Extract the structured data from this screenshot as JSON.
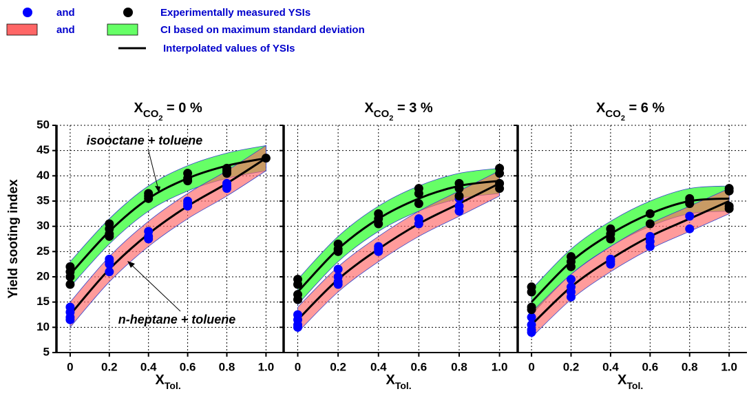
{
  "legend": [
    {
      "name": "and",
      "color": "#0000ff",
      "marker": "dot"
    },
    {
      "name": "and",
      "color": "#ff6666",
      "marker": "rect"
    },
    {
      "name": "Experimentally measured YSIs",
      "color": "#000000",
      "marker": "dot"
    },
    {
      "name": "CI based on maximum standard deviation",
      "color": "#66ff66",
      "marker": "rect"
    },
    {
      "name": "Interpolated values of YSIs",
      "color": "#000000",
      "marker": "line"
    }
  ],
  "ylabel": "Yield sooting index",
  "chart_data": [
    {
      "type": "scatter",
      "title": {
        "base": "X",
        "sub": "CO",
        "subsub": "2",
        "rest": " = 0 %"
      },
      "xlabel": {
        "base": "X",
        "sub": "Tol."
      },
      "xlim": [
        -0.07,
        1.09
      ],
      "ylim": [
        5,
        50
      ],
      "xticks": [
        0,
        0.2,
        0.4,
        0.6,
        0.8,
        {
          "value": 1,
          "label": "1.0"
        }
      ],
      "yticks": [
        5,
        10,
        15,
        20,
        25,
        30,
        35,
        40,
        45,
        50
      ],
      "show_ytick_labels": true,
      "grid": true,
      "annotations": [
        "isooctane + toluene",
        "n-heptane + toluene"
      ],
      "series": [
        {
          "type": "band",
          "color": "#66ff66",
          "x": [
            0,
            0.2,
            0.4,
            0.6,
            0.8,
            1
          ],
          "lower": [
            18,
            26.5,
            33,
            37,
            39.5,
            41
          ],
          "upper": [
            23,
            31.5,
            38,
            42,
            44.5,
            46
          ]
        },
        {
          "type": "band",
          "color": "#ff6666",
          "x": [
            0,
            0.2,
            0.4,
            0.6,
            0.8,
            1
          ],
          "lower": [
            10,
            19,
            26,
            31.5,
            36,
            41
          ],
          "upper": [
            15,
            24,
            31,
            36.5,
            41,
            46
          ]
        },
        {
          "type": "line",
          "color": "#000000",
          "x": [
            0,
            0.2,
            0.4,
            0.6,
            0.8,
            1
          ],
          "values": [
            20.5,
            29,
            35.5,
            39.5,
            42,
            43.5
          ]
        },
        {
          "type": "line",
          "color": "#000000",
          "x": [
            0,
            0.2,
            0.4,
            0.6,
            0.8,
            1
          ],
          "values": [
            12.5,
            21.5,
            28.5,
            34,
            38.5,
            43.5
          ]
        },
        {
          "type": "points",
          "color": "#0000ff",
          "x": [
            0,
            0,
            0,
            0,
            0.2,
            0.2,
            0.2,
            0.2,
            0.4,
            0.4,
            0.4,
            0.6,
            0.6,
            0.6,
            0.8,
            0.8,
            0.8
          ],
          "values": [
            14,
            13,
            12,
            11.5,
            23.5,
            23,
            22.5,
            21,
            29,
            28,
            27.5,
            35,
            34.5,
            34,
            38.5,
            38,
            37.5
          ]
        },
        {
          "type": "points",
          "color": "#000000",
          "x": [
            0,
            0,
            0,
            0,
            0.2,
            0.2,
            0.2,
            0.2,
            0.4,
            0.4,
            0.4,
            0.6,
            0.6,
            0.6,
            0.8,
            0.8,
            0.8,
            1
          ],
          "values": [
            22,
            21,
            20,
            18.5,
            30.5,
            29.5,
            28.5,
            28,
            36.5,
            36,
            35.5,
            40.5,
            39.5,
            39,
            41.5,
            41,
            40.5,
            43.5
          ]
        }
      ]
    },
    {
      "type": "scatter",
      "title": {
        "base": "X",
        "sub": "CO",
        "subsub": "2",
        "rest": " = 3 %"
      },
      "xlabel": {
        "base": "X",
        "sub": "Tol."
      },
      "xlim": [
        -0.07,
        1.09
      ],
      "ylim": [
        5,
        50
      ],
      "xticks": [
        0,
        0.2,
        0.4,
        0.6,
        0.8,
        {
          "value": 1,
          "label": "1.0"
        }
      ],
      "yticks": [
        5,
        10,
        15,
        20,
        25,
        30,
        35,
        40,
        45,
        50
      ],
      "show_ytick_labels": false,
      "grid": true,
      "series": [
        {
          "type": "band",
          "color": "#66ff66",
          "x": [
            0,
            0.2,
            0.4,
            0.6,
            0.8,
            1
          ],
          "lower": [
            14.5,
            23,
            29,
            33,
            35.5,
            36.5
          ],
          "upper": [
            19.5,
            28,
            34,
            38,
            40.5,
            41.5
          ]
        },
        {
          "type": "band",
          "color": "#ff6666",
          "x": [
            0,
            0.2,
            0.4,
            0.6,
            0.8,
            1
          ],
          "lower": [
            9,
            17,
            23,
            28,
            32,
            36
          ],
          "upper": [
            14,
            22,
            28,
            33,
            37,
            41
          ]
        },
        {
          "type": "line",
          "color": "#000000",
          "x": [
            0,
            0.2,
            0.4,
            0.6,
            0.8,
            1
          ],
          "values": [
            17,
            25.5,
            31.5,
            35.5,
            38,
            39
          ]
        },
        {
          "type": "line",
          "color": "#000000",
          "x": [
            0,
            0.2,
            0.4,
            0.6,
            0.8,
            1
          ],
          "values": [
            11.5,
            19.5,
            25.5,
            30.5,
            34.5,
            38.5
          ]
        },
        {
          "type": "points",
          "color": "#0000ff",
          "x": [
            0,
            0,
            0,
            0,
            0.2,
            0.2,
            0.2,
            0.2,
            0.4,
            0.4,
            0.4,
            0.6,
            0.6,
            0.8,
            0.8,
            0.8
          ],
          "values": [
            12.5,
            11.5,
            10.5,
            10,
            21.5,
            20,
            19,
            18.5,
            26,
            25.5,
            25,
            31.5,
            30.5,
            35.5,
            34,
            33
          ]
        },
        {
          "type": "points",
          "color": "#000000",
          "x": [
            0,
            0,
            0,
            0,
            0.2,
            0.2,
            0.2,
            0.4,
            0.4,
            0.4,
            0.6,
            0.6,
            0.6,
            0.8,
            0.8,
            0.8,
            1,
            1,
            1,
            1
          ],
          "values": [
            19.5,
            18.5,
            16.5,
            15.5,
            26.5,
            25.5,
            25,
            32.5,
            31.5,
            30.5,
            37.5,
            36.5,
            34.5,
            38.5,
            37.5,
            36,
            41.5,
            40.5,
            38.5,
            37.5
          ]
        }
      ]
    },
    {
      "type": "scatter",
      "title": {
        "base": "X",
        "sub": "CO",
        "subsub": "2",
        "rest": " = 6 %"
      },
      "xlabel": {
        "base": "X",
        "sub": "Tol."
      },
      "xlim": [
        -0.07,
        1.09
      ],
      "ylim": [
        5,
        50
      ],
      "xticks": [
        0,
        0.2,
        0.4,
        0.6,
        0.8,
        {
          "value": 1,
          "label": "1.0"
        }
      ],
      "yticks": [
        5,
        10,
        15,
        20,
        25,
        30,
        35,
        40,
        45,
        50
      ],
      "show_ytick_labels": false,
      "grid": true,
      "series": [
        {
          "type": "band",
          "color": "#66ff66",
          "x": [
            0,
            0.2,
            0.4,
            0.6,
            0.8,
            1
          ],
          "lower": [
            12.5,
            20.5,
            26,
            30,
            32.5,
            33
          ],
          "upper": [
            17.5,
            25.5,
            31,
            35,
            37.5,
            38
          ]
        },
        {
          "type": "band",
          "color": "#ff6666",
          "x": [
            0,
            0.2,
            0.4,
            0.6,
            0.8,
            1
          ],
          "lower": [
            8,
            15.5,
            21,
            25.5,
            29,
            32.5
          ],
          "upper": [
            13,
            20.5,
            26,
            30.5,
            34,
            37.5
          ]
        },
        {
          "type": "line",
          "color": "#000000",
          "x": [
            0,
            0.2,
            0.4,
            0.6,
            0.8,
            1
          ],
          "values": [
            15,
            23,
            28.5,
            32.5,
            35,
            35.5
          ]
        },
        {
          "type": "line",
          "color": "#000000",
          "x": [
            0,
            0.2,
            0.4,
            0.6,
            0.8,
            1
          ],
          "values": [
            10.5,
            18,
            23.5,
            28,
            31.5,
            35
          ]
        },
        {
          "type": "points",
          "color": "#0000ff",
          "x": [
            0,
            0,
            0,
            0,
            0.2,
            0.2,
            0.2,
            0.2,
            0.4,
            0.4,
            0.4,
            0.6,
            0.6,
            0.6,
            0.8,
            0.8
          ],
          "values": [
            12,
            10.5,
            9.5,
            9,
            19.5,
            18,
            17,
            16,
            23.5,
            23,
            22.5,
            28,
            27,
            26,
            32,
            29.5
          ]
        },
        {
          "type": "points",
          "color": "#000000",
          "x": [
            0,
            0,
            0,
            0,
            0.2,
            0.2,
            0.2,
            0.4,
            0.4,
            0.4,
            0.6,
            0.6,
            0.8,
            0.8,
            0.8,
            1,
            1,
            1,
            1
          ],
          "values": [
            18,
            17,
            14,
            13.5,
            24,
            23,
            22,
            29.5,
            28.5,
            27.5,
            32.5,
            30.5,
            35.5,
            35,
            34.5,
            37.5,
            37,
            34,
            33.5
          ]
        }
      ]
    }
  ]
}
